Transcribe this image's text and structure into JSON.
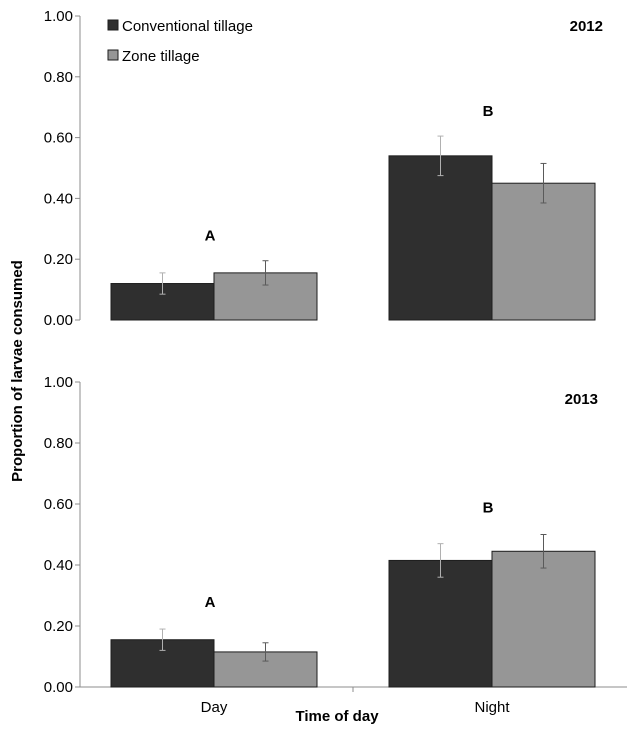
{
  "chart_data": [
    {
      "type": "bar",
      "title": "2012",
      "xlabel": "",
      "ylabel": "Proportion of larvae consumed",
      "ylim": [
        0,
        1
      ],
      "yticks": [
        "0.00",
        "0.20",
        "0.40",
        "0.60",
        "0.80",
        "1.00"
      ],
      "categories": [
        "Day",
        "Night"
      ],
      "series": [
        {
          "name": "Conventional tillage",
          "color": "#2f2f2f",
          "values": [
            0.12,
            0.54
          ],
          "errors": [
            0.035,
            0.065
          ]
        },
        {
          "name": "Zone tillage",
          "color": "#969696",
          "values": [
            0.155,
            0.45
          ],
          "errors": [
            0.04,
            0.065
          ]
        }
      ],
      "annotations": [
        "A",
        "B"
      ],
      "legend": "top-left",
      "grid": false
    },
    {
      "type": "bar",
      "title": "2013",
      "xlabel": "Time of day",
      "ylabel": "Proportion of larvae consumed",
      "ylim": [
        0,
        1
      ],
      "yticks": [
        "0.00",
        "0.20",
        "0.40",
        "0.60",
        "0.80",
        "1.00"
      ],
      "categories": [
        "Day",
        "Night"
      ],
      "series": [
        {
          "name": "Conventional tillage",
          "color": "#2f2f2f",
          "values": [
            0.155,
            0.415
          ],
          "errors": [
            0.035,
            0.055
          ]
        },
        {
          "name": "Zone tillage",
          "color": "#969696",
          "values": [
            0.115,
            0.445
          ],
          "errors": [
            0.03,
            0.055
          ]
        }
      ],
      "annotations": [
        "A",
        "B"
      ],
      "grid": false
    }
  ]
}
